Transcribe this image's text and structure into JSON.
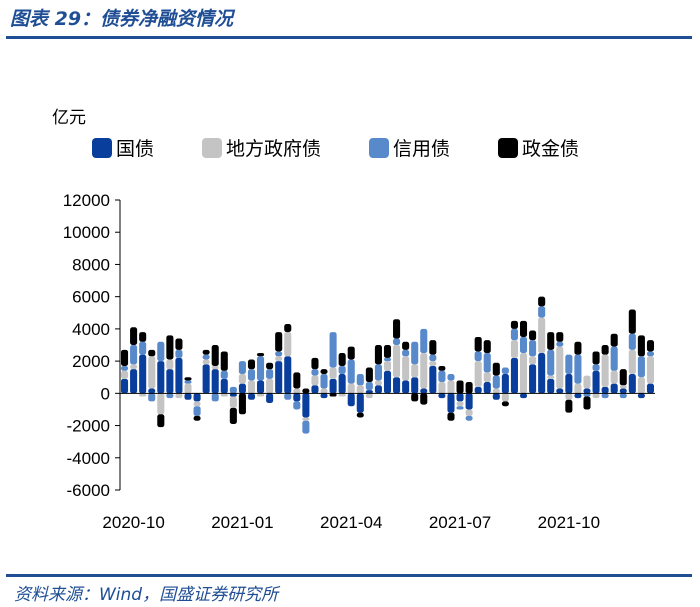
{
  "header": {
    "title": "图表 29：债券净融资情况"
  },
  "footer": {
    "source": "资料来源：Wind，国盛证券研究所"
  },
  "colors": {
    "accent": "#1f4e95"
  },
  "chart_data": {
    "type": "bar",
    "stacked": true,
    "ylabel": "亿元",
    "ylim": [
      -6000,
      12000
    ],
    "yticks": [
      12000,
      10000,
      8000,
      6000,
      4000,
      2000,
      0,
      -2000,
      -4000,
      -6000
    ],
    "xtick_labels": [
      "2020-10",
      "2021-01",
      "2021-04",
      "2021-07",
      "2021-10"
    ],
    "xtick_positions": [
      1,
      13,
      25,
      37,
      49
    ],
    "legend_position": "top",
    "series": [
      {
        "name": "国债",
        "color": "#0a3e9c",
        "values": [
          900,
          1500,
          2400,
          300,
          2000,
          1500,
          2200,
          -400,
          -500,
          1800,
          1500,
          900,
          -200,
          600,
          -400,
          800,
          -600,
          2000,
          2300,
          -500,
          -1500,
          500,
          -300,
          900,
          1200,
          -800,
          -1200,
          200,
          500,
          1400,
          1000,
          800,
          1000,
          300,
          1700,
          -300,
          -1200,
          -500,
          -1000,
          400,
          700,
          -400,
          1200,
          2200,
          -300,
          1800,
          2500,
          900,
          300,
          1200,
          -300,
          300,
          1400,
          400,
          600,
          300,
          1200,
          -300,
          600
        ]
      },
      {
        "name": "地方政府债",
        "color": "#c4c4c4",
        "values": [
          500,
          300,
          -200,
          2000,
          -1300,
          600,
          -300,
          600,
          -300,
          300,
          200,
          -200,
          -700,
          600,
          800,
          -200,
          900,
          300,
          1500,
          300,
          -200,
          600,
          300,
          700,
          -200,
          600,
          500,
          -300,
          300,
          600,
          2000,
          1500,
          800,
          2200,
          300,
          700,
          800,
          -300,
          -400,
          1600,
          600,
          300,
          -500,
          1100,
          2500,
          500,
          2200,
          200,
          2600,
          -400,
          600,
          800,
          -300,
          2000,
          800,
          200,
          1500,
          1000,
          1700
        ]
      },
      {
        "name": "信用债",
        "color": "#5889cb",
        "values": [
          300,
          1200,
          800,
          -500,
          1200,
          -300,
          500,
          200,
          -600,
          300,
          -500,
          500,
          400,
          800,
          700,
          1500,
          600,
          300,
          -400,
          -500,
          -800,
          400,
          900,
          2200,
          500,
          1500,
          700,
          500,
          1000,
          200,
          400,
          400,
          1400,
          1500,
          400,
          700,
          400,
          -200,
          -300,
          600,
          1200,
          800,
          400,
          700,
          1000,
          1000,
          700,
          1600,
          300,
          1200,
          1800,
          -200,
          400,
          -300,
          1500,
          -300,
          1000,
          1300,
          300
        ]
      },
      {
        "name": "政金债",
        "color": "#000000",
        "values": [
          1000,
          1100,
          600,
          400,
          -800,
          1500,
          700,
          200,
          -300,
          300,
          1300,
          1200,
          -1000,
          -1300,
          600,
          200,
          400,
          1200,
          500,
          1000,
          300,
          700,
          300,
          -200,
          800,
          800,
          -300,
          900,
          1200,
          800,
          1200,
          500,
          -500,
          -700,
          900,
          300,
          -500,
          800,
          700,
          900,
          800,
          800,
          -300,
          500,
          1000,
          600,
          600,
          1100,
          600,
          -800,
          800,
          -800,
          800,
          600,
          800,
          1000,
          1500,
          1300,
          700
        ]
      }
    ]
  }
}
